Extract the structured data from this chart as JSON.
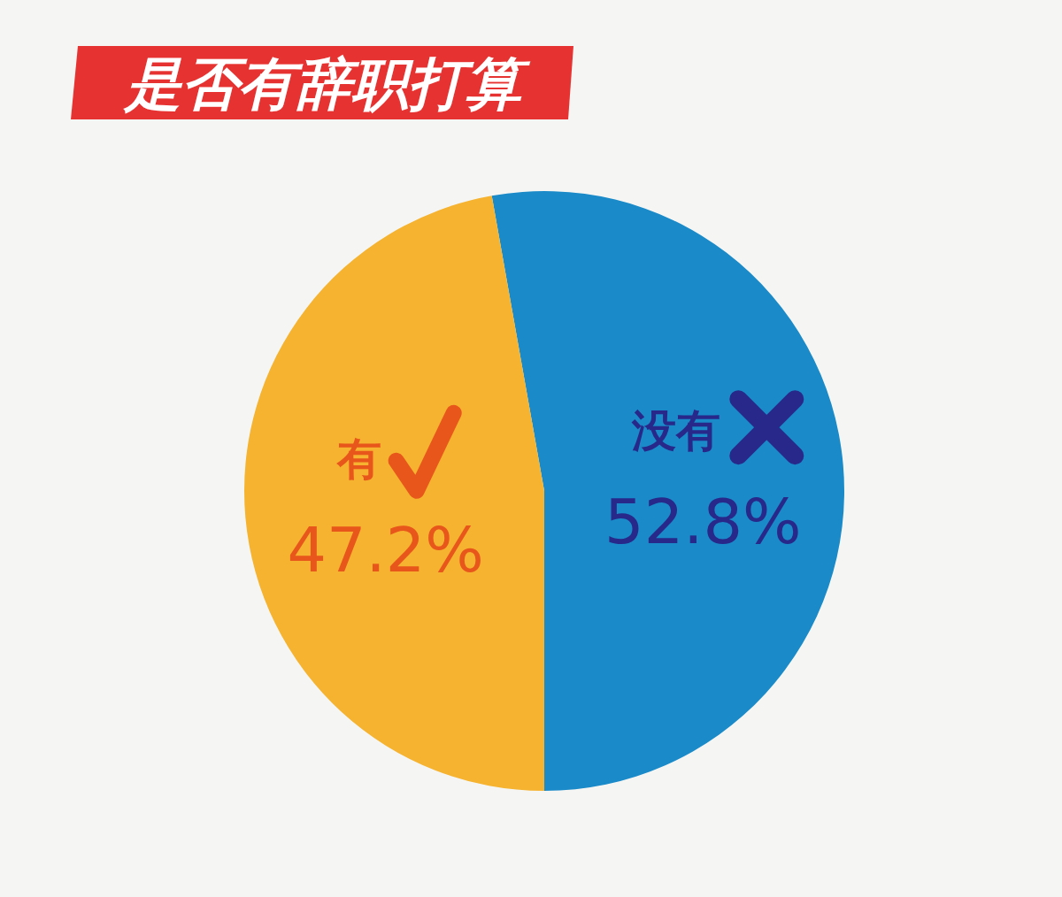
{
  "chart_data": {
    "type": "pie",
    "title": "是否有辞职打算",
    "categories": [
      "没有",
      "有"
    ],
    "values": [
      52.8,
      47.2
    ],
    "colors": [
      "#1a8ac8",
      "#f5b330"
    ],
    "value_labels": [
      "52.8%",
      "47.2%"
    ]
  }
}
